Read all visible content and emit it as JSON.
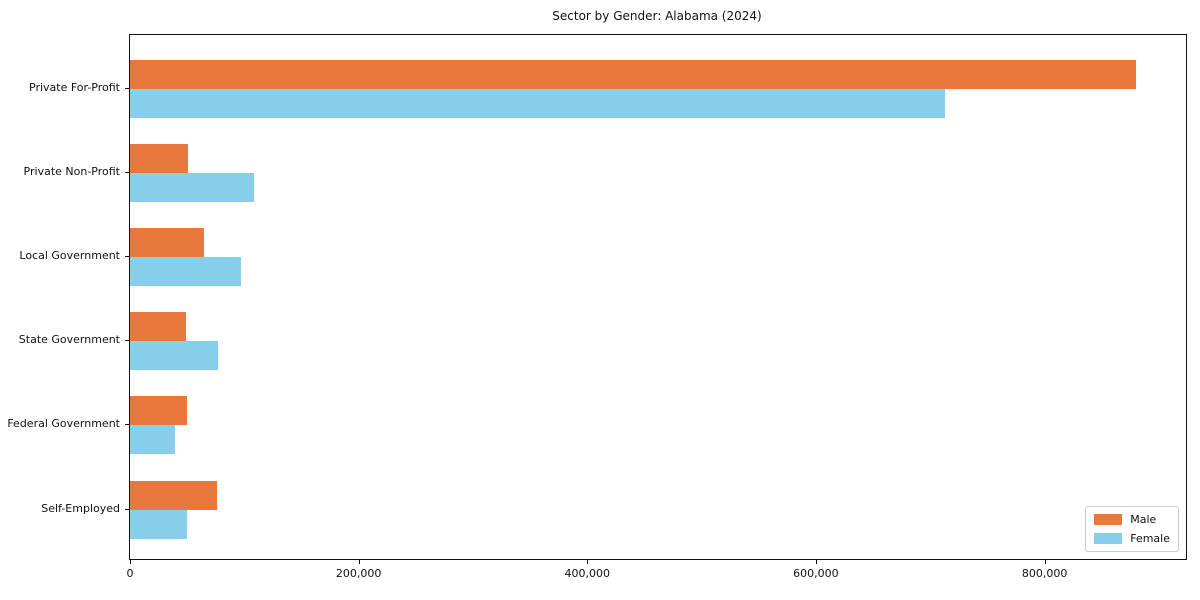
{
  "chart_data": {
    "type": "bar",
    "orientation": "horizontal",
    "title": "Sector by Gender: Alabama (2024)",
    "xlabel": "",
    "ylabel": "",
    "grid": false,
    "categories": [
      "Private For-Profit",
      "Private Non-Profit",
      "Local Government",
      "State Government",
      "Federal Government",
      "Self-Employed"
    ],
    "series": [
      {
        "name": "Male",
        "color": "#e8793d",
        "values": [
          880000,
          51000,
          65000,
          49000,
          50000,
          76000
        ]
      },
      {
        "name": "Female",
        "color": "#87ceeb",
        "values": [
          713000,
          108000,
          97000,
          77000,
          39000,
          50000
        ]
      }
    ],
    "xlim": [
      0,
      923700
    ],
    "x_ticks": [
      0,
      200000,
      400000,
      600000,
      800000
    ],
    "x_tick_labels": [
      "0",
      "200,000",
      "400,000",
      "600,000",
      "800,000"
    ],
    "legend": {
      "position": "lower-right",
      "entries": [
        "Male",
        "Female"
      ]
    }
  }
}
